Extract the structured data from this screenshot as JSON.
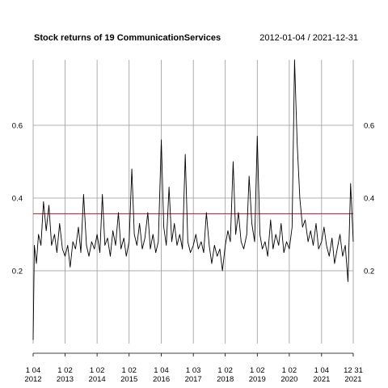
{
  "chart_data": {
    "type": "line",
    "title": "Stock returns of 19 CommunicationServices",
    "subtitle": "2012-01-04 / 2021-12-31",
    "xlabel": "",
    "ylabel": "",
    "x_range": [
      "2012-01-04",
      "2021-12-31"
    ],
    "ylim": [
      0.0,
      0.78
    ],
    "y_ticks": [
      0.2,
      0.4,
      0.6
    ],
    "y_tick_labels": [
      "0.2",
      "0.4",
      "0.6"
    ],
    "x_ticks": [
      {
        "date": "2012-01-04",
        "top": "1 04",
        "bottom": "2012"
      },
      {
        "date": "2013-01-02",
        "top": "1 02",
        "bottom": "2013"
      },
      {
        "date": "2014-01-02",
        "top": "1 02",
        "bottom": "2014"
      },
      {
        "date": "2015-01-02",
        "top": "1 02",
        "bottom": "2015"
      },
      {
        "date": "2016-01-04",
        "top": "1 04",
        "bottom": "2016"
      },
      {
        "date": "2017-01-03",
        "top": "1 03",
        "bottom": "2017"
      },
      {
        "date": "2018-01-02",
        "top": "1 02",
        "bottom": "2018"
      },
      {
        "date": "2019-01-02",
        "top": "1 02",
        "bottom": "2019"
      },
      {
        "date": "2020-01-02",
        "top": "1 02",
        "bottom": "2020"
      },
      {
        "date": "2021-01-04",
        "top": "1 04",
        "bottom": "2021"
      },
      {
        "date": "2021-12-31",
        "top": "12 31",
        "bottom": "2021"
      }
    ],
    "reference_line": {
      "y": 0.357,
      "color": "#b2182b"
    },
    "grid": true,
    "series": [
      {
        "color": "#000000",
        "points": [
          [
            "2012-01-04",
            0.01
          ],
          [
            "2012-01-18",
            0.27
          ],
          [
            "2012-02-10",
            0.22
          ],
          [
            "2012-03-05",
            0.3
          ],
          [
            "2012-04-02",
            0.27
          ],
          [
            "2012-05-01",
            0.39
          ],
          [
            "2012-06-01",
            0.31
          ],
          [
            "2012-07-02",
            0.38
          ],
          [
            "2012-08-01",
            0.27
          ],
          [
            "2012-09-04",
            0.3
          ],
          [
            "2012-10-01",
            0.25
          ],
          [
            "2012-11-01",
            0.33
          ],
          [
            "2012-12-03",
            0.26
          ],
          [
            "2013-01-02",
            0.24
          ],
          [
            "2013-02-01",
            0.27
          ],
          [
            "2013-03-01",
            0.21
          ],
          [
            "2013-04-01",
            0.28
          ],
          [
            "2013-05-01",
            0.26
          ],
          [
            "2013-06-03",
            0.32
          ],
          [
            "2013-07-01",
            0.25
          ],
          [
            "2013-08-01",
            0.41
          ],
          [
            "2013-09-03",
            0.27
          ],
          [
            "2013-10-01",
            0.24
          ],
          [
            "2013-11-01",
            0.28
          ],
          [
            "2013-12-02",
            0.26
          ],
          [
            "2014-01-02",
            0.3
          ],
          [
            "2014-02-03",
            0.25
          ],
          [
            "2014-03-03",
            0.41
          ],
          [
            "2014-04-01",
            0.27
          ],
          [
            "2014-05-01",
            0.29
          ],
          [
            "2014-06-02",
            0.24
          ],
          [
            "2014-07-01",
            0.31
          ],
          [
            "2014-08-01",
            0.27
          ],
          [
            "2014-09-02",
            0.36
          ],
          [
            "2014-10-01",
            0.26
          ],
          [
            "2014-11-03",
            0.29
          ],
          [
            "2014-12-01",
            0.24
          ],
          [
            "2015-01-02",
            0.28
          ],
          [
            "2015-02-02",
            0.48
          ],
          [
            "2015-03-02",
            0.3
          ],
          [
            "2015-04-01",
            0.27
          ],
          [
            "2015-05-01",
            0.33
          ],
          [
            "2015-06-01",
            0.26
          ],
          [
            "2015-07-01",
            0.29
          ],
          [
            "2015-08-03",
            0.36
          ],
          [
            "2015-09-01",
            0.26
          ],
          [
            "2015-10-01",
            0.3
          ],
          [
            "2015-11-02",
            0.25
          ],
          [
            "2015-12-01",
            0.28
          ],
          [
            "2016-01-04",
            0.56
          ],
          [
            "2016-02-01",
            0.32
          ],
          [
            "2016-03-01",
            0.27
          ],
          [
            "2016-04-01",
            0.43
          ],
          [
            "2016-05-02",
            0.28
          ],
          [
            "2016-06-01",
            0.33
          ],
          [
            "2016-07-01",
            0.27
          ],
          [
            "2016-08-01",
            0.3
          ],
          [
            "2016-09-01",
            0.26
          ],
          [
            "2016-10-03",
            0.52
          ],
          [
            "2016-11-01",
            0.28
          ],
          [
            "2016-12-01",
            0.25
          ],
          [
            "2017-01-03",
            0.27
          ],
          [
            "2017-02-01",
            0.3
          ],
          [
            "2017-03-01",
            0.26
          ],
          [
            "2017-04-03",
            0.28
          ],
          [
            "2017-05-01",
            0.25
          ],
          [
            "2017-06-01",
            0.36
          ],
          [
            "2017-07-03",
            0.27
          ],
          [
            "2017-08-01",
            0.22
          ],
          [
            "2017-09-01",
            0.27
          ],
          [
            "2017-10-02",
            0.24
          ],
          [
            "2017-11-01",
            0.26
          ],
          [
            "2017-12-01",
            0.2
          ],
          [
            "2018-01-02",
            0.27
          ],
          [
            "2018-02-01",
            0.31
          ],
          [
            "2018-03-01",
            0.28
          ],
          [
            "2018-04-02",
            0.5
          ],
          [
            "2018-05-01",
            0.3
          ],
          [
            "2018-06-01",
            0.36
          ],
          [
            "2018-07-02",
            0.28
          ],
          [
            "2018-08-01",
            0.26
          ],
          [
            "2018-09-04",
            0.3
          ],
          [
            "2018-10-01",
            0.46
          ],
          [
            "2018-11-01",
            0.33
          ],
          [
            "2018-12-03",
            0.28
          ],
          [
            "2019-01-02",
            0.57
          ],
          [
            "2019-02-01",
            0.3
          ],
          [
            "2019-03-01",
            0.26
          ],
          [
            "2019-04-01",
            0.28
          ],
          [
            "2019-05-01",
            0.24
          ],
          [
            "2019-06-03",
            0.34
          ],
          [
            "2019-07-01",
            0.26
          ],
          [
            "2019-08-01",
            0.3
          ],
          [
            "2019-09-03",
            0.27
          ],
          [
            "2019-10-01",
            0.33
          ],
          [
            "2019-11-01",
            0.25
          ],
          [
            "2019-12-02",
            0.28
          ],
          [
            "2020-01-02",
            0.26
          ],
          [
            "2020-02-03",
            0.32
          ],
          [
            "2020-03-02",
            0.78
          ],
          [
            "2020-04-01",
            0.55
          ],
          [
            "2020-05-01",
            0.4
          ],
          [
            "2020-06-01",
            0.32
          ],
          [
            "2020-07-01",
            0.34
          ],
          [
            "2020-08-03",
            0.28
          ],
          [
            "2020-09-01",
            0.31
          ],
          [
            "2020-10-01",
            0.27
          ],
          [
            "2020-11-02",
            0.33
          ],
          [
            "2020-12-01",
            0.26
          ],
          [
            "2021-01-04",
            0.28
          ],
          [
            "2021-02-01",
            0.32
          ],
          [
            "2021-03-01",
            0.27
          ],
          [
            "2021-04-01",
            0.24
          ],
          [
            "2021-05-03",
            0.29
          ],
          [
            "2021-06-01",
            0.22
          ],
          [
            "2021-07-01",
            0.26
          ],
          [
            "2021-08-02",
            0.3
          ],
          [
            "2021-09-01",
            0.24
          ],
          [
            "2021-10-01",
            0.27
          ],
          [
            "2021-11-01",
            0.17
          ],
          [
            "2021-12-01",
            0.44
          ],
          [
            "2021-12-31",
            0.28
          ]
        ]
      }
    ]
  }
}
